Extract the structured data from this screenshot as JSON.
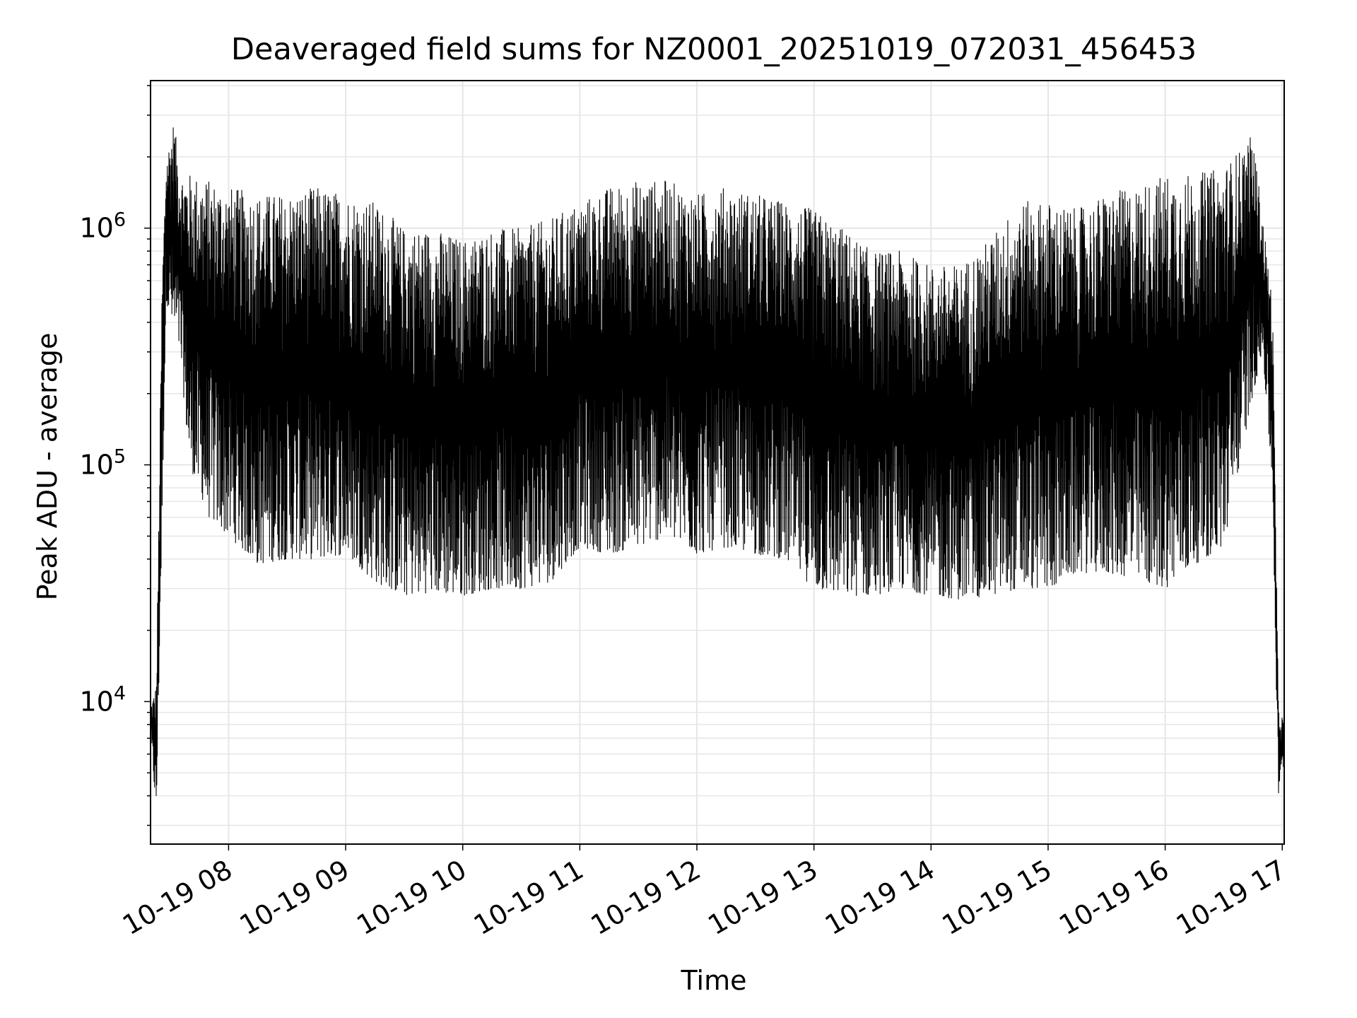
{
  "chart_data": {
    "type": "line",
    "title": "Deaveraged field sums for NZ0001_20251019_072031_456453",
    "xlabel": "Time",
    "ylabel": "Peak ADU - average",
    "yscale": "log",
    "ylim": [
      2500,
      4200000
    ],
    "xlim": [
      "2025-10-19 07:20",
      "2025-10-19 17:01"
    ],
    "grid": true,
    "line_color": "#000000",
    "grid_color": "#e6e6e6",
    "x_ticks": [
      {
        "t": "2025-10-19 08:00",
        "label": "10-19 08"
      },
      {
        "t": "2025-10-19 09:00",
        "label": "10-19 09"
      },
      {
        "t": "2025-10-19 10:00",
        "label": "10-19 10"
      },
      {
        "t": "2025-10-19 11:00",
        "label": "10-19 11"
      },
      {
        "t": "2025-10-19 12:00",
        "label": "10-19 12"
      },
      {
        "t": "2025-10-19 13:00",
        "label": "10-19 13"
      },
      {
        "t": "2025-10-19 14:00",
        "label": "10-19 14"
      },
      {
        "t": "2025-10-19 15:00",
        "label": "10-19 15"
      },
      {
        "t": "2025-10-19 16:00",
        "label": "10-19 16"
      },
      {
        "t": "2025-10-19 17:00",
        "label": "10-19 17"
      }
    ],
    "y_ticks": [
      {
        "value": 10000,
        "base": "10",
        "exp": "4"
      },
      {
        "value": 100000,
        "base": "10",
        "exp": "5"
      },
      {
        "value": 1000000,
        "base": "10",
        "exp": "6"
      }
    ],
    "series": [
      {
        "x": [
          "2025-10-19 07:20",
          "2025-10-19 07:23",
          "2025-10-19 07:26",
          "2025-10-19 07:28",
          "2025-10-19 07:32",
          "2025-10-19 07:35",
          "2025-10-19 07:40",
          "2025-10-19 07:50",
          "2025-10-19 08:00",
          "2025-10-19 08:15",
          "2025-10-19 08:30",
          "2025-10-19 08:45",
          "2025-10-19 09:00",
          "2025-10-19 09:15",
          "2025-10-19 09:30",
          "2025-10-19 09:45",
          "2025-10-19 10:00",
          "2025-10-19 10:15",
          "2025-10-19 10:30",
          "2025-10-19 10:45",
          "2025-10-19 11:00",
          "2025-10-19 11:15",
          "2025-10-19 11:30",
          "2025-10-19 11:45",
          "2025-10-19 12:00",
          "2025-10-19 12:15",
          "2025-10-19 12:30",
          "2025-10-19 12:45",
          "2025-10-19 13:00",
          "2025-10-19 13:15",
          "2025-10-19 13:30",
          "2025-10-19 13:45",
          "2025-10-19 14:00",
          "2025-10-19 14:15",
          "2025-10-19 14:30",
          "2025-10-19 14:45",
          "2025-10-19 15:00",
          "2025-10-19 15:15",
          "2025-10-19 15:30",
          "2025-10-19 15:45",
          "2025-10-19 16:00",
          "2025-10-19 16:15",
          "2025-10-19 16:30",
          "2025-10-19 16:45",
          "2025-10-19 16:50",
          "2025-10-19 16:55",
          "2025-10-19 16:58",
          "2025-10-19 17:01"
        ],
        "low": [
          7000,
          3300,
          60000,
          500000,
          350000,
          300000,
          100000,
          60000,
          50000,
          38000,
          40000,
          40000,
          42000,
          32000,
          28000,
          29000,
          28000,
          30000,
          30000,
          32000,
          45000,
          42000,
          45000,
          50000,
          42000,
          45000,
          42000,
          40000,
          30000,
          28000,
          28000,
          30000,
          28000,
          27000,
          28000,
          30000,
          30000,
          35000,
          35000,
          33000,
          30000,
          38000,
          45000,
          200000,
          300000,
          80000,
          4000,
          5500
        ],
        "high": [
          9500,
          12000,
          700000,
          2000000,
          2900000,
          1700000,
          1700000,
          1600000,
          1500000,
          1400000,
          1400000,
          1500000,
          1400000,
          1300000,
          1000000,
          1000000,
          900000,
          1000000,
          1000000,
          1100000,
          1300000,
          1500000,
          1600000,
          1600000,
          1400000,
          1500000,
          1400000,
          1300000,
          1200000,
          1000000,
          800000,
          800000,
          700000,
          700000,
          900000,
          1300000,
          1300000,
          1200000,
          1400000,
          1500000,
          1700000,
          1700000,
          1800000,
          2500000,
          1100000,
          500000,
          10000,
          8000
        ]
      }
    ]
  }
}
